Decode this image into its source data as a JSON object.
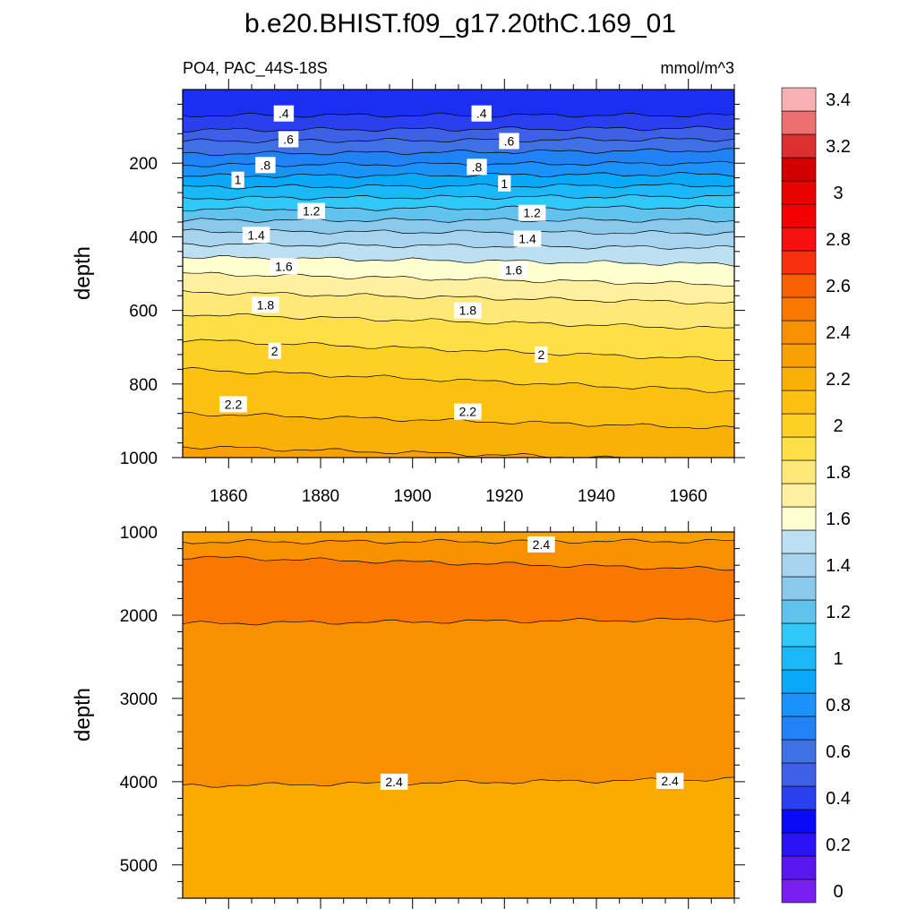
{
  "chart_data": {
    "type": "contour",
    "title": "b.e20.BHIST.f09_g17.20thC.169_01",
    "left_subtitle": "PO4, PAC_44S-18S",
    "right_subtitle": "mmol/m^3",
    "ylabel": "depth",
    "xlim": [
      1850,
      1970
    ],
    "xticks": [
      "1860",
      "1880",
      "1900",
      "1920",
      "1940",
      "1960"
    ],
    "upper_panel": {
      "ylim": [
        0,
        1000
      ],
      "yticks": [
        "200",
        "400",
        "600",
        "800",
        "1000"
      ],
      "contour_levels": [
        0.4,
        0.5,
        0.6,
        0.7,
        0.8,
        0.9,
        1.0,
        1.1,
        1.2,
        1.3,
        1.4,
        1.5,
        1.6,
        1.7,
        1.8,
        1.9,
        2.0,
        2.1,
        2.2,
        2.3
      ],
      "contour_depths_at_1850": [
        70,
        110,
        140,
        175,
        205,
        235,
        265,
        295,
        325,
        355,
        385,
        420,
        455,
        500,
        550,
        610,
        680,
        760,
        880,
        970
      ],
      "contour_depths_at_1970": [
        70,
        105,
        135,
        165,
        200,
        230,
        260,
        290,
        320,
        355,
        390,
        430,
        475,
        530,
        580,
        650,
        735,
        820,
        920,
        1010
      ],
      "line_labels": [
        {
          "text": ".4",
          "year": 1872,
          "depth": 65
        },
        {
          "text": ".4",
          "year": 1915,
          "depth": 65
        },
        {
          "text": ".6",
          "year": 1873,
          "depth": 135
        },
        {
          "text": ".6",
          "year": 1921,
          "depth": 140
        },
        {
          "text": ".8",
          "year": 1868,
          "depth": 205
        },
        {
          "text": ".8",
          "year": 1914,
          "depth": 210
        },
        {
          "text": "1",
          "year": 1862,
          "depth": 245
        },
        {
          "text": "1",
          "year": 1920,
          "depth": 255
        },
        {
          "text": "1.2",
          "year": 1878,
          "depth": 330
        },
        {
          "text": "1.2",
          "year": 1926,
          "depth": 335
        },
        {
          "text": "1.4",
          "year": 1866,
          "depth": 395
        },
        {
          "text": "1.4",
          "year": 1925,
          "depth": 405
        },
        {
          "text": "1.6",
          "year": 1872,
          "depth": 480
        },
        {
          "text": "1.6",
          "year": 1922,
          "depth": 490
        },
        {
          "text": "1.8",
          "year": 1868,
          "depth": 585
        },
        {
          "text": "1.8",
          "year": 1912,
          "depth": 600
        },
        {
          "text": "2",
          "year": 1870,
          "depth": 710
        },
        {
          "text": "2",
          "year": 1928,
          "depth": 720
        },
        {
          "text": "2.2",
          "year": 1861,
          "depth": 855
        },
        {
          "text": "2.2",
          "year": 1912,
          "depth": 875
        }
      ]
    },
    "lower_panel": {
      "ylim": [
        1000,
        5400
      ],
      "yticks": [
        "1000",
        "2000",
        "3000",
        "4000",
        "5000"
      ],
      "contour_levels": [
        2.4,
        2.5,
        2.5,
        2.4
      ],
      "contour_depths_at_1850": [
        1120,
        1300,
        2100,
        4050
      ],
      "contour_depths_at_1970": [
        1110,
        1450,
        2050,
        3970
      ],
      "line_labels": [
        {
          "text": "2.4",
          "year": 1928,
          "depth": 1150
        },
        {
          "text": "2.4",
          "year": 1896,
          "depth": 4000
        },
        {
          "text": "2.4",
          "year": 1956,
          "depth": 3990
        }
      ]
    },
    "colorbar": {
      "colors": [
        "#7a1ff2",
        "#5a17f0",
        "#2a13f5",
        "#0a0af6",
        "#2a40ef",
        "#3e60e6",
        "#3f70e4",
        "#2082f5",
        "#1a92f8",
        "#0aa8f8",
        "#1ab8f6",
        "#30c8f8",
        "#62c2ee",
        "#8ac8ec",
        "#a6d4ee",
        "#bce0f2",
        "#ffffd0",
        "#fff0a0",
        "#fee878",
        "#fde046",
        "#fcd025",
        "#fcc010",
        "#fbb008",
        "#f8a004",
        "#f89000",
        "#f87800",
        "#f86000",
        "#f83010",
        "#f81010",
        "#f40000",
        "#e80000",
        "#d00000",
        "#dc3030",
        "#ec7070",
        "#f8b0b0"
      ],
      "labels": [
        "0",
        "0.2",
        "0.4",
        "0.6",
        "0.8",
        "1",
        "1.2",
        "1.4",
        "1.6",
        "1.8",
        "2",
        "2.2",
        "2.4",
        "2.6",
        "2.8",
        "3",
        "3.2",
        "3.4"
      ]
    },
    "upper_fill_colors": [
      "#1a2ff2",
      "#2a40ef",
      "#3e60e6",
      "#3f70e4",
      "#2082f5",
      "#1a92f8",
      "#0aa8f8",
      "#1ab8f6",
      "#30c8f8",
      "#62c2ee",
      "#8ac8ec",
      "#a6d4ee",
      "#bce0f2",
      "#ffffd0",
      "#fff0a0",
      "#fee878",
      "#fde046",
      "#fcd025",
      "#fcc010",
      "#fbb008",
      "#f8a004"
    ],
    "lower_fill_colors": [
      "#f8a004",
      "#f89000",
      "#f87800",
      "#f89000",
      "#fbab00"
    ]
  }
}
